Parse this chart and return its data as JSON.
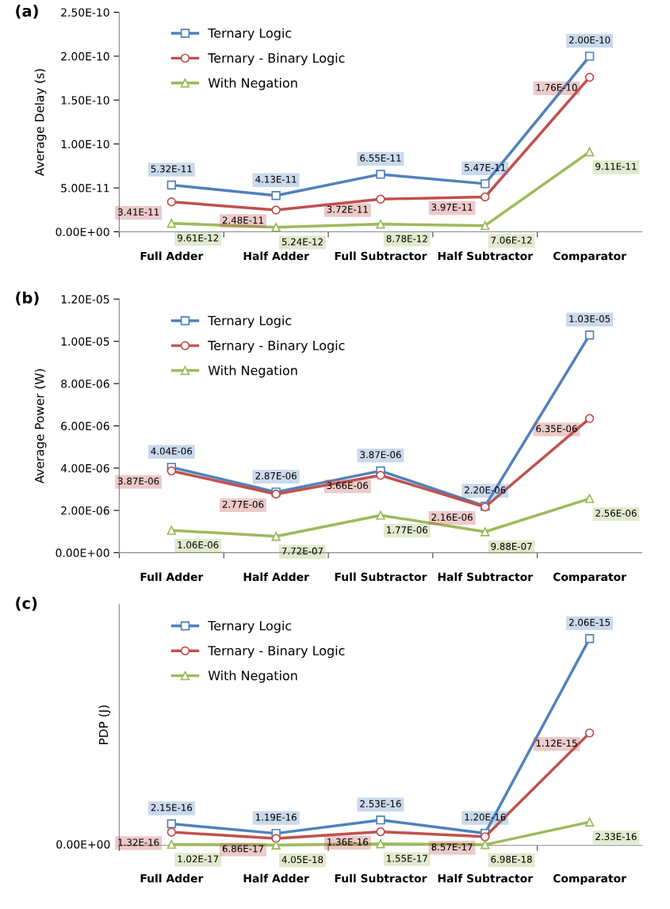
{
  "chart_data": [
    {
      "type": "line",
      "title": "(a)",
      "ylabel": "Average Delay (s)",
      "categories": [
        "Full Adder",
        "Half Adder",
        "Full Subtractor",
        "Half Subtractor",
        "Comparator"
      ],
      "ylim": [
        0,
        2.5e-10
      ],
      "yticks": [
        {
          "value": 0,
          "label": "0.00E+00"
        },
        {
          "value": 5e-11,
          "label": "5.00E-11"
        },
        {
          "value": 1e-10,
          "label": "1.00E-10"
        },
        {
          "value": 1.5e-10,
          "label": "1.50E-10"
        },
        {
          "value": 2e-10,
          "label": "2.00E-10"
        },
        {
          "value": 2.5e-10,
          "label": "2.50E-10"
        }
      ],
      "legend": "top left",
      "grid": false,
      "series": [
        {
          "name": "Ternary Logic",
          "color": "#4f81bd",
          "marker": "square",
          "values": [
            5.32e-11,
            4.13e-11,
            6.55e-11,
            5.47e-11,
            2e-10
          ],
          "value_labels": [
            "5.32E-11",
            "4.13E-11",
            "6.55E-11",
            "5.47E-11",
            "2.00E-10"
          ]
        },
        {
          "name": "Ternary - Binary Logic",
          "color": "#c0504d",
          "marker": "circle",
          "values": [
            3.41e-11,
            2.48e-11,
            3.72e-11,
            3.97e-11,
            1.76e-10
          ],
          "value_labels": [
            "3.41E-11",
            "2.48E-11",
            "3.72E-11",
            "3.97E-11",
            "1.76E-10"
          ]
        },
        {
          "name": "With Negation",
          "color": "#9bbb59",
          "marker": "triangle",
          "values": [
            9.61e-12,
            5.24e-12,
            8.78e-12,
            7.06e-12,
            9.11e-11
          ],
          "value_labels": [
            "9.61E-12",
            "5.24E-12",
            "8.78E-12",
            "7.06E-12",
            "9.11E-11"
          ]
        }
      ]
    },
    {
      "type": "line",
      "title": "(b)",
      "ylabel": "Average Power (W)",
      "categories": [
        "Full Adder",
        "Half Adder",
        "Full Subtractor",
        "Half Subtractor",
        "Comparator"
      ],
      "ylim": [
        0,
        1.2e-05
      ],
      "yticks": [
        {
          "value": 0,
          "label": "0.00E+00"
        },
        {
          "value": 2e-06,
          "label": "2.00E-06"
        },
        {
          "value": 4e-06,
          "label": "4.00E-06"
        },
        {
          "value": 6e-06,
          "label": "6.00E-06"
        },
        {
          "value": 8e-06,
          "label": "8.00E-06"
        },
        {
          "value": 1e-05,
          "label": "1.00E-05"
        },
        {
          "value": 1.2e-05,
          "label": "1.20E-05"
        }
      ],
      "legend": "top left",
      "grid": false,
      "series": [
        {
          "name": "Ternary Logic",
          "color": "#4f81bd",
          "marker": "square",
          "values": [
            4.04e-06,
            2.87e-06,
            3.87e-06,
            2.2e-06,
            1.03e-05
          ],
          "value_labels": [
            "4.04E-06",
            "2.87E-06",
            "3.87E-06",
            "2.20E-06",
            "1.03E-05"
          ]
        },
        {
          "name": "Ternary - Binary Logic",
          "color": "#c0504d",
          "marker": "circle",
          "values": [
            3.87e-06,
            2.77e-06,
            3.66e-06,
            2.16e-06,
            6.35e-06
          ],
          "value_labels": [
            "3.87E-06",
            "2.77E-06",
            "3.66E-06",
            "2.16E-06",
            "6.35E-06"
          ]
        },
        {
          "name": "With Negation",
          "color": "#9bbb59",
          "marker": "triangle",
          "values": [
            1.06e-06,
            7.72e-07,
            1.77e-06,
            9.88e-07,
            2.56e-06
          ],
          "value_labels": [
            "1.06E-06",
            "7.72E-07",
            "1.77E-06",
            "9.88E-07",
            "2.56E-06"
          ]
        }
      ]
    },
    {
      "type": "line",
      "title": "(c)",
      "ylabel": "PDP (J)",
      "categories": [
        "Full Adder",
        "Half Adder",
        "Full Subtractor",
        "Half Subtractor",
        "Comparator"
      ],
      "ylim": [
        0,
        2.4e-15
      ],
      "annotations": [
        "0.00E+00"
      ],
      "legend": "top left",
      "grid": false,
      "series": [
        {
          "name": "Ternary Logic",
          "color": "#4f81bd",
          "marker": "square",
          "values": [
            2.15e-16,
            1.19e-16,
            2.53e-16,
            1.2e-16,
            2.06e-15
          ],
          "value_labels": [
            "2.15E-16",
            "1.19E-16",
            "2.53E-16",
            "1.20E-16",
            "2.06E-15"
          ]
        },
        {
          "name": "Ternary - Binary Logic",
          "color": "#c0504d",
          "marker": "circle",
          "values": [
            1.32e-16,
            6.86e-17,
            1.36e-16,
            8.57e-17,
            1.12e-15
          ],
          "value_labels": [
            "1.32E-16",
            "6.86E-17",
            "1.36E-16",
            "8.57E-17",
            "1.12E-15"
          ]
        },
        {
          "name": "With Negation",
          "color": "#9bbb59",
          "marker": "triangle",
          "values": [
            1.02e-17,
            4.05e-18,
            1.55e-17,
            6.98e-18,
            2.33e-16
          ],
          "value_labels": [
            "1.02E-17",
            "4.05E-18",
            "1.55E-17",
            "6.98E-18",
            "2.33E-16"
          ]
        }
      ]
    }
  ]
}
